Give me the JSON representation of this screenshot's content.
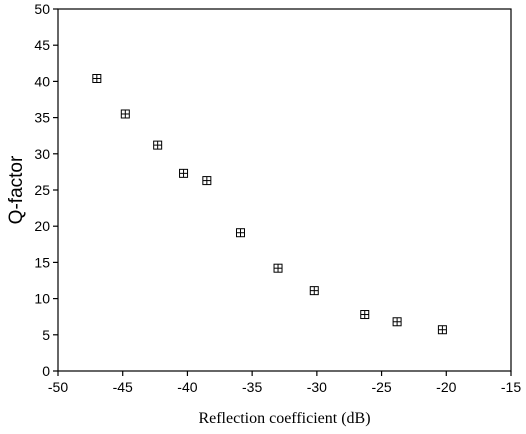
{
  "chart_data": {
    "type": "scatter",
    "title": "",
    "xlabel": "Reflection coefficient (dB)",
    "ylabel": "Q-factor",
    "xlim": [
      -50,
      -15
    ],
    "ylim": [
      0,
      50
    ],
    "grid": false,
    "legend": "none",
    "marker": "square-with-cross",
    "x_ticks": [
      -50,
      -45,
      -40,
      -35,
      -30,
      -25,
      -20,
      -15
    ],
    "y_ticks": [
      0,
      5,
      10,
      15,
      20,
      25,
      30,
      35,
      40,
      45,
      50
    ],
    "series": [
      {
        "x": [
          -47.0,
          -44.8,
          -42.3,
          -40.3,
          -38.5,
          -35.9,
          -33.0,
          -30.2,
          -26.3,
          -23.8,
          -20.3
        ],
        "y": [
          40.4,
          35.5,
          31.2,
          27.3,
          26.3,
          19.1,
          14.2,
          11.1,
          7.8,
          6.8,
          5.7
        ]
      }
    ],
    "colors": {
      "marker": "#000000",
      "axis": "#000000"
    }
  }
}
